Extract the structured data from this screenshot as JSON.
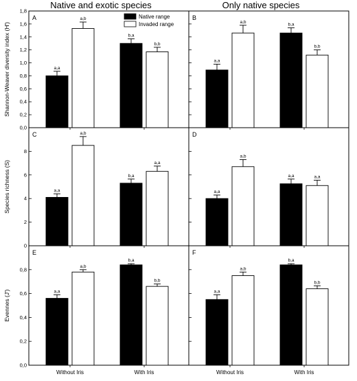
{
  "column_titles": [
    "Native and exotic species",
    "Only native species"
  ],
  "legend": [
    {
      "label": "Native range",
      "color": "#000000"
    },
    {
      "label": "Invaded range",
      "color": "#ffffff"
    }
  ],
  "chart_data": [
    {
      "type": "bar",
      "panel": "A",
      "categories": [
        "Without Iris",
        "With Iris"
      ],
      "ylabel": "Shannon-Weaver diversity index (H')",
      "ylim": [
        0,
        1.8
      ],
      "yticks": [
        0,
        0.2,
        0.4,
        0.6,
        0.8,
        1.0,
        1.2,
        1.4,
        1.6,
        1.8
      ],
      "yticklabels": [
        "0,0",
        "0,2",
        "0,4",
        "0,6",
        "0,8",
        "1,0",
        "1,2",
        "1,4",
        "1,6",
        "1,8"
      ],
      "series": [
        {
          "name": "Native range",
          "values": [
            0.8,
            1.3
          ],
          "errors": [
            0.07,
            0.07
          ],
          "labels": [
            "a,a",
            "b,a"
          ]
        },
        {
          "name": "Invaded range",
          "values": [
            1.53,
            1.17
          ],
          "errors": [
            0.1,
            0.07
          ],
          "labels": [
            "a,b",
            "b,b"
          ]
        }
      ]
    },
    {
      "type": "bar",
      "panel": "B",
      "categories": [
        "Without Iris",
        "With Iris"
      ],
      "ylabel": "",
      "ylim": [
        0,
        1.8
      ],
      "yticks": [
        0,
        0.2,
        0.4,
        0.6,
        0.8,
        1.0,
        1.2,
        1.4,
        1.6,
        1.8
      ],
      "yticklabels": [],
      "series": [
        {
          "name": "Native range",
          "values": [
            0.89,
            1.46
          ],
          "errors": [
            0.09,
            0.08
          ],
          "labels": [
            "a,a",
            "b,a"
          ]
        },
        {
          "name": "Invaded range",
          "values": [
            1.46,
            1.12
          ],
          "errors": [
            0.12,
            0.08
          ],
          "labels": [
            "a,b",
            "b,b"
          ]
        }
      ]
    },
    {
      "type": "bar",
      "panel": "C",
      "categories": [
        "Without Iris",
        "With Iris"
      ],
      "ylabel": "Species richness (S)",
      "ylim": [
        0,
        10
      ],
      "yticks": [
        0,
        2,
        4,
        6,
        8
      ],
      "yticklabels": [
        "0",
        "2",
        "4",
        "6",
        "8"
      ],
      "series": [
        {
          "name": "Native range",
          "values": [
            4.1,
            5.3
          ],
          "errors": [
            0.3,
            0.35
          ],
          "labels": [
            "a,a",
            "b,a"
          ]
        },
        {
          "name": "Invaded range",
          "values": [
            8.5,
            6.3
          ],
          "errors": [
            0.75,
            0.45
          ],
          "labels": [
            "a,b",
            "a,a"
          ]
        }
      ]
    },
    {
      "type": "bar",
      "panel": "D",
      "categories": [
        "Without Iris",
        "With Iris"
      ],
      "ylabel": "",
      "ylim": [
        0,
        10
      ],
      "yticks": [
        0,
        2,
        4,
        6,
        8
      ],
      "yticklabels": [],
      "series": [
        {
          "name": "Native range",
          "values": [
            4.0,
            5.25
          ],
          "errors": [
            0.3,
            0.4
          ],
          "labels": [
            "a,a",
            "a,a"
          ]
        },
        {
          "name": "Invaded range",
          "values": [
            6.7,
            5.1
          ],
          "errors": [
            0.6,
            0.45
          ],
          "labels": [
            "a,b",
            "a,a"
          ]
        }
      ]
    },
    {
      "type": "bar",
      "panel": "E",
      "categories": [
        "Without Iris",
        "With Iris"
      ],
      "ylabel": "Evennes (J')",
      "ylim": [
        0,
        1.0
      ],
      "yticks": [
        0,
        0.2,
        0.4,
        0.6,
        0.8
      ],
      "yticklabels": [
        "0,0",
        "0,2",
        "0,4",
        "0,6",
        "0,8"
      ],
      "series": [
        {
          "name": "Native range",
          "values": [
            0.56,
            0.84
          ],
          "errors": [
            0.03,
            0.01
          ],
          "labels": [
            "a,a",
            "b,a"
          ]
        },
        {
          "name": "Invaded range",
          "values": [
            0.78,
            0.66
          ],
          "errors": [
            0.02,
            0.02
          ],
          "labels": [
            "a,b",
            "b,b"
          ]
        }
      ]
    },
    {
      "type": "bar",
      "panel": "F",
      "categories": [
        "Without Iris",
        "With Iris"
      ],
      "ylabel": "",
      "ylim": [
        0,
        1.0
      ],
      "yticks": [
        0,
        0.2,
        0.4,
        0.6,
        0.8
      ],
      "yticklabels": [],
      "series": [
        {
          "name": "Native range",
          "values": [
            0.55,
            0.84
          ],
          "errors": [
            0.04,
            0.01
          ],
          "labels": [
            "a,a",
            "b,a"
          ]
        },
        {
          "name": "Invaded range",
          "values": [
            0.75,
            0.64
          ],
          "errors": [
            0.03,
            0.025
          ],
          "labels": [
            "a,b",
            "b,b"
          ]
        }
      ]
    }
  ]
}
